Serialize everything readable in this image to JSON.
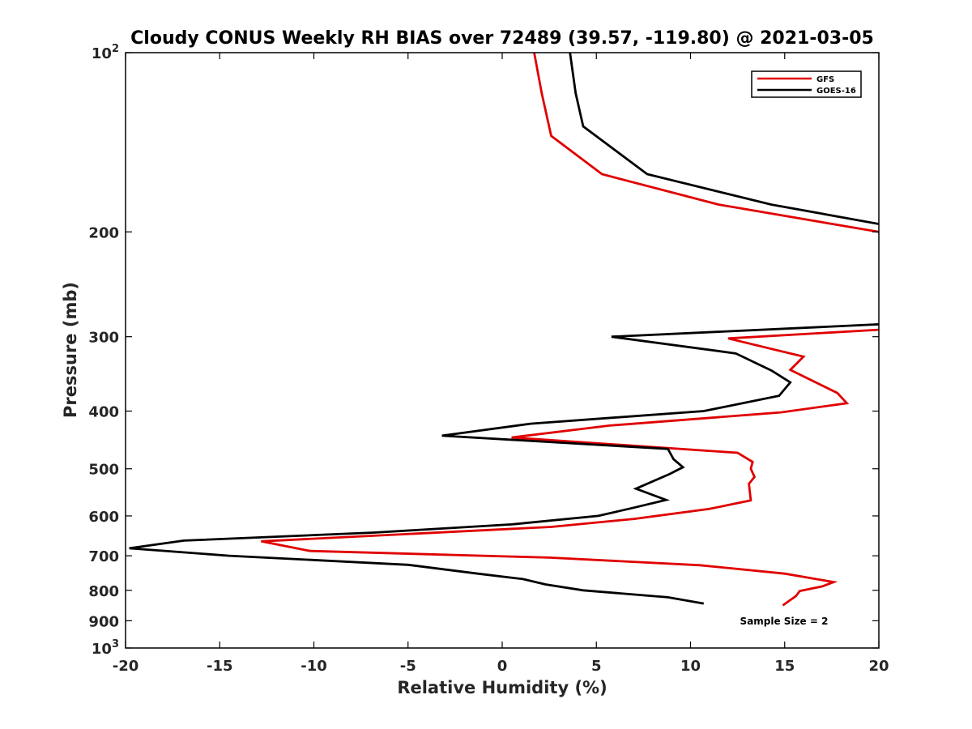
{
  "chart_data": {
    "type": "line",
    "title": "Cloudy CONUS Weekly RH BIAS over 72489 (39.57, -119.80) @ 2021-03-05",
    "xlabel": "Relative Humidity (%)",
    "ylabel": "Pressure (mb)",
    "xlim": [
      -20,
      20
    ],
    "ylim": [
      100,
      1000
    ],
    "y_scale": "log",
    "y_reversed": true,
    "x_ticks": [
      "-20",
      "-15",
      "-10",
      "-5",
      "0",
      "5",
      "10",
      "15",
      "20"
    ],
    "y_ticks": [
      {
        "value": 100,
        "base": "10",
        "exp": "2"
      },
      {
        "value": 200,
        "label": "200"
      },
      {
        "value": 300,
        "label": "300"
      },
      {
        "value": 400,
        "label": "400"
      },
      {
        "value": 500,
        "label": "500"
      },
      {
        "value": 600,
        "label": "600"
      },
      {
        "value": 700,
        "label": "700"
      },
      {
        "value": 800,
        "label": "800"
      },
      {
        "value": 900,
        "label": "900"
      },
      {
        "value": 1000,
        "base": "10",
        "exp": "3"
      }
    ],
    "legend_position": "top-right",
    "grid": false,
    "series": [
      {
        "name": "GFS",
        "color": "#e00000",
        "points": [
          [
            1.7,
            100
          ],
          [
            2.1,
            117
          ],
          [
            2.6,
            138
          ],
          [
            5.3,
            160
          ],
          [
            11.5,
            180
          ],
          [
            20,
            200
          ],
          [
            null,
            250
          ],
          [
            20,
            292
          ],
          [
            12,
            302
          ],
          [
            16,
            324
          ],
          [
            15.3,
            341
          ],
          [
            17.8,
            373
          ],
          [
            18.3,
            388
          ],
          [
            14.8,
            402
          ],
          [
            5.7,
            423
          ],
          [
            0.5,
            443
          ],
          [
            12.5,
            470
          ],
          [
            13.3,
            487
          ],
          [
            13.2,
            500
          ],
          [
            13.4,
            516
          ],
          [
            13.1,
            530
          ],
          [
            13.2,
            565
          ],
          [
            11,
            584
          ],
          [
            7,
            607
          ],
          [
            2.6,
            626
          ],
          [
            -12.8,
            662
          ],
          [
            -10.2,
            687
          ],
          [
            2.5,
            705
          ],
          [
            10.5,
            726
          ],
          [
            15,
            750
          ],
          [
            17.6,
            775
          ],
          [
            17,
            788
          ],
          [
            15.8,
            802
          ],
          [
            15.6,
            818
          ],
          [
            15.2,
            835
          ],
          [
            14.9,
            848
          ]
        ]
      },
      {
        "name": "GOES-16",
        "color": "#000000",
        "points": [
          [
            3.6,
            100
          ],
          [
            3.9,
            117
          ],
          [
            4.3,
            133
          ],
          [
            7.7,
            160
          ],
          [
            14.3,
            180
          ],
          [
            20,
            194
          ],
          [
            null,
            250
          ],
          [
            20,
            286
          ],
          [
            5.8,
            300
          ],
          [
            12.4,
            320
          ],
          [
            14.3,
            342
          ],
          [
            15.3,
            358
          ],
          [
            14.7,
            377
          ],
          [
            10.7,
            400
          ],
          [
            1.5,
            420
          ],
          [
            -3.2,
            440
          ],
          [
            8.8,
            463
          ],
          [
            9.1,
            482
          ],
          [
            9.6,
            497
          ],
          [
            8.9,
            510
          ],
          [
            7.1,
            540
          ],
          [
            8.7,
            564
          ],
          [
            7,
            581
          ],
          [
            5.1,
            600
          ],
          [
            0.5,
            620
          ],
          [
            -6.8,
            640
          ],
          [
            -16.9,
            660
          ],
          [
            -19.8,
            680
          ],
          [
            -14.5,
            700
          ],
          [
            -5,
            725
          ],
          [
            -1.3,
            750
          ],
          [
            1.1,
            766
          ],
          [
            2.3,
            782
          ],
          [
            4.3,
            800
          ],
          [
            8.8,
            822
          ],
          [
            10.7,
            842
          ]
        ]
      }
    ],
    "annotation": "Sample Size = 2"
  }
}
